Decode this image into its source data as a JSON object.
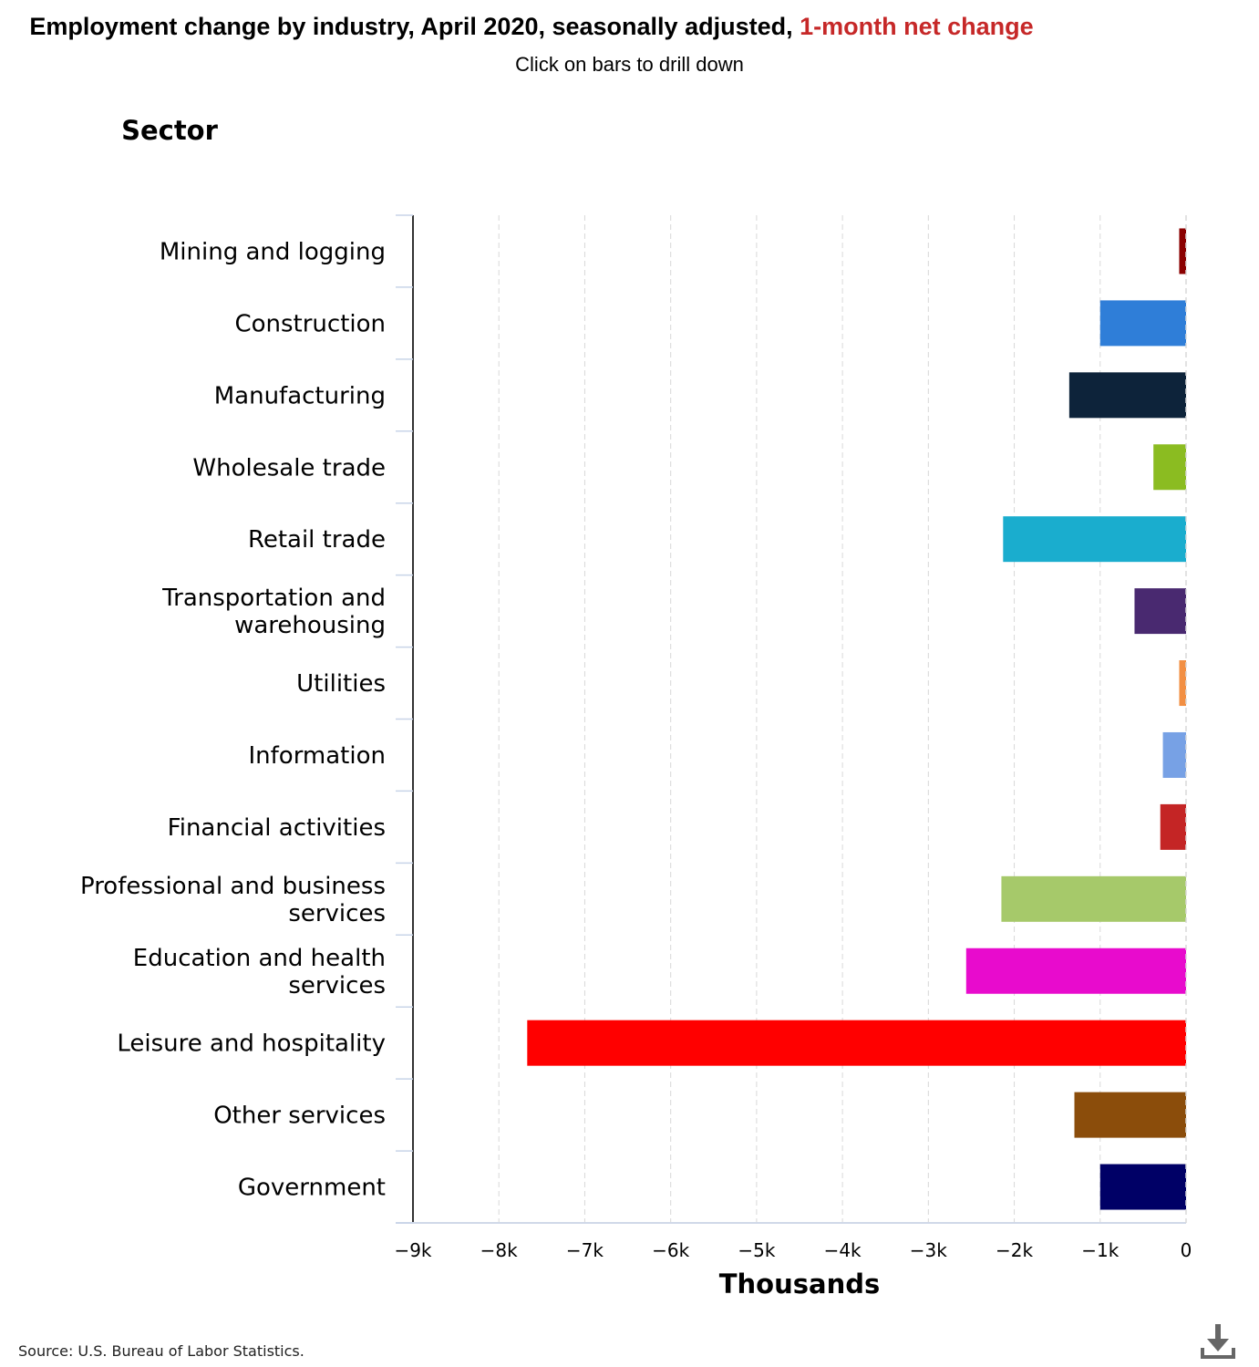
{
  "header": {
    "title_main": "Employment change by industry, April 2020, seasonally adjusted,",
    "title_accent": "1-month net change",
    "subtitle": "Click on bars to drill down"
  },
  "footer": {
    "source": "Source: U.S. Bureau of Labor Statistics."
  },
  "icons": {
    "download": "download-icon"
  },
  "chart_data": {
    "type": "bar",
    "orientation": "horizontal",
    "title": "Employment change by industry, April 2020, seasonally adjusted, 1-month net change",
    "subtitle": "Click on bars to drill down",
    "ylabel": "Sector",
    "xlabel": "Thousands",
    "xlim": [
      -9000,
      0
    ],
    "xticks": [
      -9000,
      -8000,
      -7000,
      -6000,
      -5000,
      -4000,
      -3000,
      -2000,
      -1000,
      0
    ],
    "xtick_labels": [
      "−9k",
      "−8k",
      "−7k",
      "−6k",
      "−5k",
      "−4k",
      "−3k",
      "−2k",
      "−1k",
      "0"
    ],
    "grid": "vertical dashed",
    "categories": [
      [
        "Mining and logging"
      ],
      [
        "Construction"
      ],
      [
        "Manufacturing"
      ],
      [
        "Wholesale trade"
      ],
      [
        "Retail trade"
      ],
      [
        "Transportation and",
        "warehousing"
      ],
      [
        "Utilities"
      ],
      [
        "Information"
      ],
      [
        "Financial activities"
      ],
      [
        "Professional and business",
        "services"
      ],
      [
        "Education and health",
        "services"
      ],
      [
        "Leisure and hospitality"
      ],
      [
        "Other services"
      ],
      [
        "Government"
      ]
    ],
    "values": [
      -80,
      -1000,
      -1360,
      -380,
      -2130,
      -600,
      -80,
      -270,
      -300,
      -2150,
      -2560,
      -7670,
      -1300,
      -1000
    ],
    "colors": [
      "#8b0000",
      "#2f7ed8",
      "#0d233a",
      "#8bbc21",
      "#1aadce",
      "#492970",
      "#f28f43",
      "#77a1e5",
      "#c42525",
      "#a6c96a",
      "#e80bcd",
      "#ff0000",
      "#8b4d0b",
      "#000066"
    ]
  }
}
